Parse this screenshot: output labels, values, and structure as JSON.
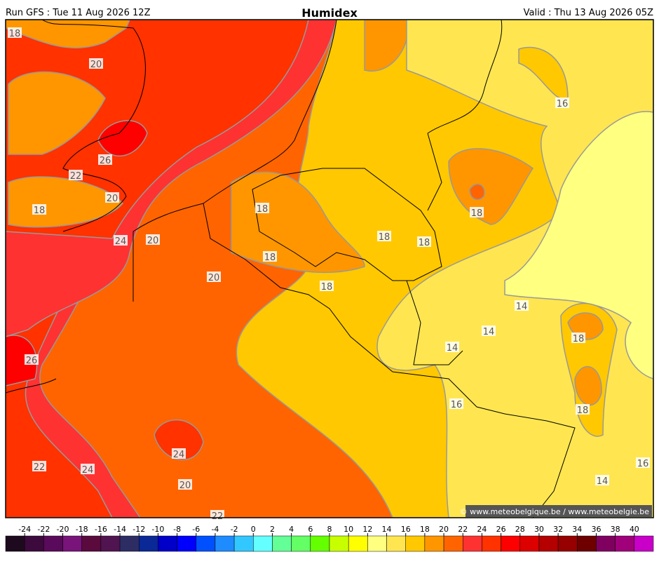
{
  "header": {
    "run": "Run GFS : Tue 11 Aug 2026 12Z",
    "title": "Humidex",
    "valid": "Valid : Thu 13 Aug 2026 05Z"
  },
  "map": {
    "contour_labels": [
      18,
      20,
      16,
      26,
      22,
      20,
      18,
      18,
      24,
      20,
      18,
      18,
      18,
      18,
      20,
      18,
      14,
      14,
      18,
      14,
      26,
      16,
      18,
      24,
      22,
      24,
      16,
      14,
      20,
      22
    ],
    "credit": "© www.meteobelgique.be / www.meteobelgie.be"
  },
  "colorbar": {
    "labels": [
      -24,
      -22,
      -20,
      -18,
      -16,
      -14,
      -12,
      -10,
      -8,
      -6,
      -4,
      -2,
      0,
      2,
      4,
      6,
      8,
      10,
      12,
      14,
      16,
      18,
      20,
      22,
      24,
      26,
      28,
      30,
      32,
      34,
      36,
      38,
      40
    ],
    "colors": [
      "#1e0a1e",
      "#3c0a3c",
      "#5a0a5a",
      "#78147a",
      "#5a0a3c",
      "#501450",
      "#2d2d64",
      "#0a2896",
      "#0000c8",
      "#0000ff",
      "#0050ff",
      "#1e8cff",
      "#32c8ff",
      "#64ffff",
      "#64ff96",
      "#64ff64",
      "#64ff00",
      "#c8ff00",
      "#ffff00",
      "#ffff80",
      "#ffe650",
      "#ffc800",
      "#ff9600",
      "#ff6400",
      "#ff3232",
      "#ff3200",
      "#ff0000",
      "#dc0000",
      "#b40000",
      "#960000",
      "#6e0000",
      "#800060",
      "#a0007a",
      "#c800c8"
    ]
  }
}
